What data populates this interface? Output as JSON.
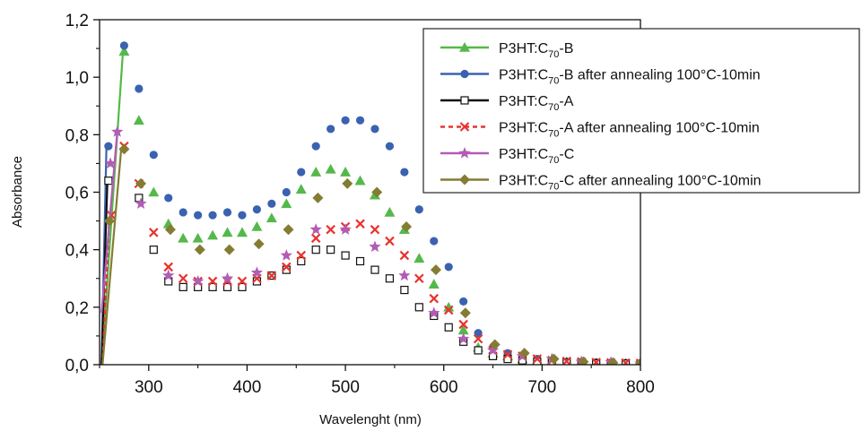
{
  "chart_data": {
    "type": "scatter",
    "title": "",
    "xlabel": "Wavelenght (nm)",
    "ylabel": "Absorbance",
    "xlim": [
      250,
      800
    ],
    "ylim": [
      0,
      1.2
    ],
    "x_ticks": [
      300,
      400,
      500,
      600,
      700,
      800
    ],
    "y_ticks": [
      0,
      0.2,
      0.4,
      0.6,
      0.8,
      1.0,
      1.2
    ],
    "x_tick_labels": [
      "300",
      "400",
      "500",
      "600",
      "700",
      "800"
    ],
    "y_tick_labels": [
      "0,0",
      "0,2",
      "0,4",
      "0,6",
      "0,8",
      "1,0",
      "1,2"
    ],
    "grid": false,
    "legend_position": "top-right",
    "legend": [
      {
        "prefix": "P3HT:C",
        "sub": "70",
        "suffix": "-B"
      },
      {
        "prefix": "P3HT:C",
        "sub": "70",
        "suffix": "-B after annealing 100°C-10min"
      },
      {
        "prefix": "P3HT:C",
        "sub": "70",
        "suffix": "-A"
      },
      {
        "prefix": "P3HT:C",
        "sub": "70",
        "suffix": "-A after annealing 100°C-10min"
      },
      {
        "prefix": "P3HT:C",
        "sub": "70",
        "suffix": "-C"
      },
      {
        "prefix": "P3HT:C",
        "sub": "70",
        "suffix": "-C after annealing 100°C-10min"
      }
    ],
    "series": [
      {
        "name": "P3HT:C70-B",
        "color": "#55b84a",
        "marker": "triangle",
        "line_style": "solid",
        "steep_start": [
          [
            252,
            0.0
          ],
          [
            274,
            1.1
          ]
        ],
        "points": [
          [
            275,
            1.09
          ],
          [
            290,
            0.85
          ],
          [
            305,
            0.6
          ],
          [
            320,
            0.49
          ],
          [
            335,
            0.44
          ],
          [
            350,
            0.44
          ],
          [
            365,
            0.45
          ],
          [
            380,
            0.46
          ],
          [
            395,
            0.46
          ],
          [
            410,
            0.48
          ],
          [
            425,
            0.51
          ],
          [
            440,
            0.56
          ],
          [
            455,
            0.61
          ],
          [
            470,
            0.67
          ],
          [
            485,
            0.68
          ],
          [
            500,
            0.67
          ],
          [
            515,
            0.64
          ],
          [
            530,
            0.59
          ],
          [
            545,
            0.53
          ],
          [
            560,
            0.47
          ],
          [
            575,
            0.37
          ],
          [
            590,
            0.28
          ],
          [
            605,
            0.2
          ],
          [
            620,
            0.12
          ],
          [
            635,
            0.06
          ],
          [
            650,
            0.04
          ],
          [
            665,
            0.03
          ],
          [
            680,
            0.02
          ],
          [
            695,
            0.015
          ],
          [
            710,
            0.01
          ],
          [
            725,
            0.01
          ],
          [
            740,
            0.008
          ],
          [
            755,
            0.006
          ],
          [
            770,
            0.005
          ],
          [
            785,
            0.005
          ],
          [
            800,
            0.004
          ]
        ]
      },
      {
        "name": "P3HT:C70-B after annealing 100°C-10min",
        "color": "#3b62b0",
        "marker": "circle",
        "line_style": "solid",
        "steep_start": [
          [
            252,
            0.0
          ],
          [
            257,
            0.76
          ]
        ],
        "points": [
          [
            259,
            0.76
          ],
          [
            275,
            1.11
          ],
          [
            290,
            0.96
          ],
          [
            305,
            0.73
          ],
          [
            320,
            0.58
          ],
          [
            335,
            0.53
          ],
          [
            350,
            0.52
          ],
          [
            365,
            0.52
          ],
          [
            380,
            0.53
          ],
          [
            395,
            0.52
          ],
          [
            410,
            0.54
          ],
          [
            425,
            0.56
          ],
          [
            440,
            0.6
          ],
          [
            455,
            0.67
          ],
          [
            470,
            0.76
          ],
          [
            485,
            0.82
          ],
          [
            500,
            0.85
          ],
          [
            515,
            0.85
          ],
          [
            530,
            0.82
          ],
          [
            545,
            0.76
          ],
          [
            560,
            0.67
          ],
          [
            575,
            0.54
          ],
          [
            590,
            0.43
          ],
          [
            605,
            0.34
          ],
          [
            620,
            0.22
          ],
          [
            635,
            0.11
          ],
          [
            650,
            0.06
          ],
          [
            665,
            0.04
          ],
          [
            680,
            0.03
          ],
          [
            695,
            0.02
          ],
          [
            710,
            0.015
          ],
          [
            725,
            0.01
          ],
          [
            740,
            0.01
          ],
          [
            755,
            0.008
          ],
          [
            770,
            0.007
          ],
          [
            785,
            0.006
          ],
          [
            800,
            0.005
          ]
        ]
      },
      {
        "name": "P3HT:C70-A",
        "color": "#111111",
        "marker": "square-open",
        "line_style": "solid",
        "steep_start": [
          [
            252,
            0.0
          ],
          [
            258,
            0.64
          ]
        ],
        "points": [
          [
            259,
            0.64
          ],
          [
            290,
            0.58
          ],
          [
            305,
            0.4
          ],
          [
            320,
            0.29
          ],
          [
            335,
            0.27
          ],
          [
            350,
            0.27
          ],
          [
            365,
            0.27
          ],
          [
            380,
            0.27
          ],
          [
            395,
            0.27
          ],
          [
            410,
            0.29
          ],
          [
            425,
            0.31
          ],
          [
            440,
            0.33
          ],
          [
            455,
            0.36
          ],
          [
            470,
            0.4
          ],
          [
            485,
            0.4
          ],
          [
            500,
            0.38
          ],
          [
            515,
            0.36
          ],
          [
            530,
            0.33
          ],
          [
            545,
            0.3
          ],
          [
            560,
            0.26
          ],
          [
            575,
            0.2
          ],
          [
            590,
            0.17
          ],
          [
            605,
            0.13
          ],
          [
            620,
            0.08
          ],
          [
            635,
            0.05
          ],
          [
            650,
            0.03
          ],
          [
            665,
            0.02
          ],
          [
            680,
            0.015
          ],
          [
            695,
            0.01
          ],
          [
            710,
            0.01
          ],
          [
            725,
            0.008
          ],
          [
            740,
            0.006
          ],
          [
            755,
            0.005
          ],
          [
            770,
            0.004
          ],
          [
            785,
            0.004
          ],
          [
            800,
            0.003
          ]
        ]
      },
      {
        "name": "P3HT:C70-A after annealing 100°C-10min",
        "color": "#e8332f",
        "marker": "cross",
        "line_style": "dashed",
        "steep_start": [
          [
            253,
            0.0
          ],
          [
            260,
            0.52
          ]
        ],
        "points": [
          [
            262,
            0.52
          ],
          [
            275,
            0.76
          ],
          [
            290,
            0.63
          ],
          [
            305,
            0.46
          ],
          [
            320,
            0.34
          ],
          [
            335,
            0.3
          ],
          [
            350,
            0.29
          ],
          [
            365,
            0.29
          ],
          [
            380,
            0.29
          ],
          [
            395,
            0.29
          ],
          [
            410,
            0.3
          ],
          [
            425,
            0.31
          ],
          [
            440,
            0.34
          ],
          [
            455,
            0.38
          ],
          [
            470,
            0.44
          ],
          [
            485,
            0.47
          ],
          [
            500,
            0.48
          ],
          [
            515,
            0.49
          ],
          [
            530,
            0.47
          ],
          [
            545,
            0.43
          ],
          [
            560,
            0.38
          ],
          [
            575,
            0.3
          ],
          [
            590,
            0.23
          ],
          [
            605,
            0.19
          ],
          [
            620,
            0.14
          ],
          [
            635,
            0.09
          ],
          [
            650,
            0.05
          ],
          [
            665,
            0.035
          ],
          [
            680,
            0.03
          ],
          [
            695,
            0.02
          ],
          [
            710,
            0.015
          ],
          [
            725,
            0.012
          ],
          [
            740,
            0.01
          ],
          [
            755,
            0.008
          ],
          [
            770,
            0.007
          ],
          [
            785,
            0.006
          ],
          [
            800,
            0.005
          ]
        ]
      },
      {
        "name": "P3HT:C70-C",
        "color": "#b15cb5",
        "marker": "star",
        "line_style": "solid",
        "steep_start": [
          [
            252,
            0.18
          ],
          [
            268,
            0.81
          ]
        ],
        "points": [
          [
            261,
            0.7
          ],
          [
            268,
            0.81
          ],
          [
            292,
            0.56
          ],
          [
            320,
            0.31
          ],
          [
            350,
            0.29
          ],
          [
            380,
            0.3
          ],
          [
            410,
            0.32
          ],
          [
            440,
            0.38
          ],
          [
            470,
            0.47
          ],
          [
            500,
            0.47
          ],
          [
            530,
            0.41
          ],
          [
            560,
            0.31
          ],
          [
            590,
            0.18
          ],
          [
            620,
            0.09
          ],
          [
            650,
            0.05
          ],
          [
            680,
            0.03
          ],
          [
            710,
            0.02
          ],
          [
            740,
            0.01
          ],
          [
            770,
            0.008
          ],
          [
            800,
            0.005
          ]
        ]
      },
      {
        "name": "P3HT:C70-C after annealing 100°C-10min",
        "color": "#847c33",
        "marker": "diamond",
        "line_style": "solid",
        "steep_start": [
          [
            253,
            0.0
          ],
          [
            272,
            0.75
          ]
        ],
        "points": [
          [
            260,
            0.5
          ],
          [
            275,
            0.75
          ],
          [
            292,
            0.63
          ],
          [
            322,
            0.47
          ],
          [
            352,
            0.4
          ],
          [
            382,
            0.4
          ],
          [
            412,
            0.42
          ],
          [
            442,
            0.47
          ],
          [
            472,
            0.58
          ],
          [
            502,
            0.63
          ],
          [
            532,
            0.6
          ],
          [
            562,
            0.48
          ],
          [
            592,
            0.33
          ],
          [
            622,
            0.18
          ],
          [
            652,
            0.07
          ],
          [
            682,
            0.04
          ],
          [
            712,
            0.02
          ],
          [
            742,
            0.01
          ],
          [
            772,
            0.007
          ],
          [
            800,
            0.005
          ]
        ]
      }
    ]
  }
}
